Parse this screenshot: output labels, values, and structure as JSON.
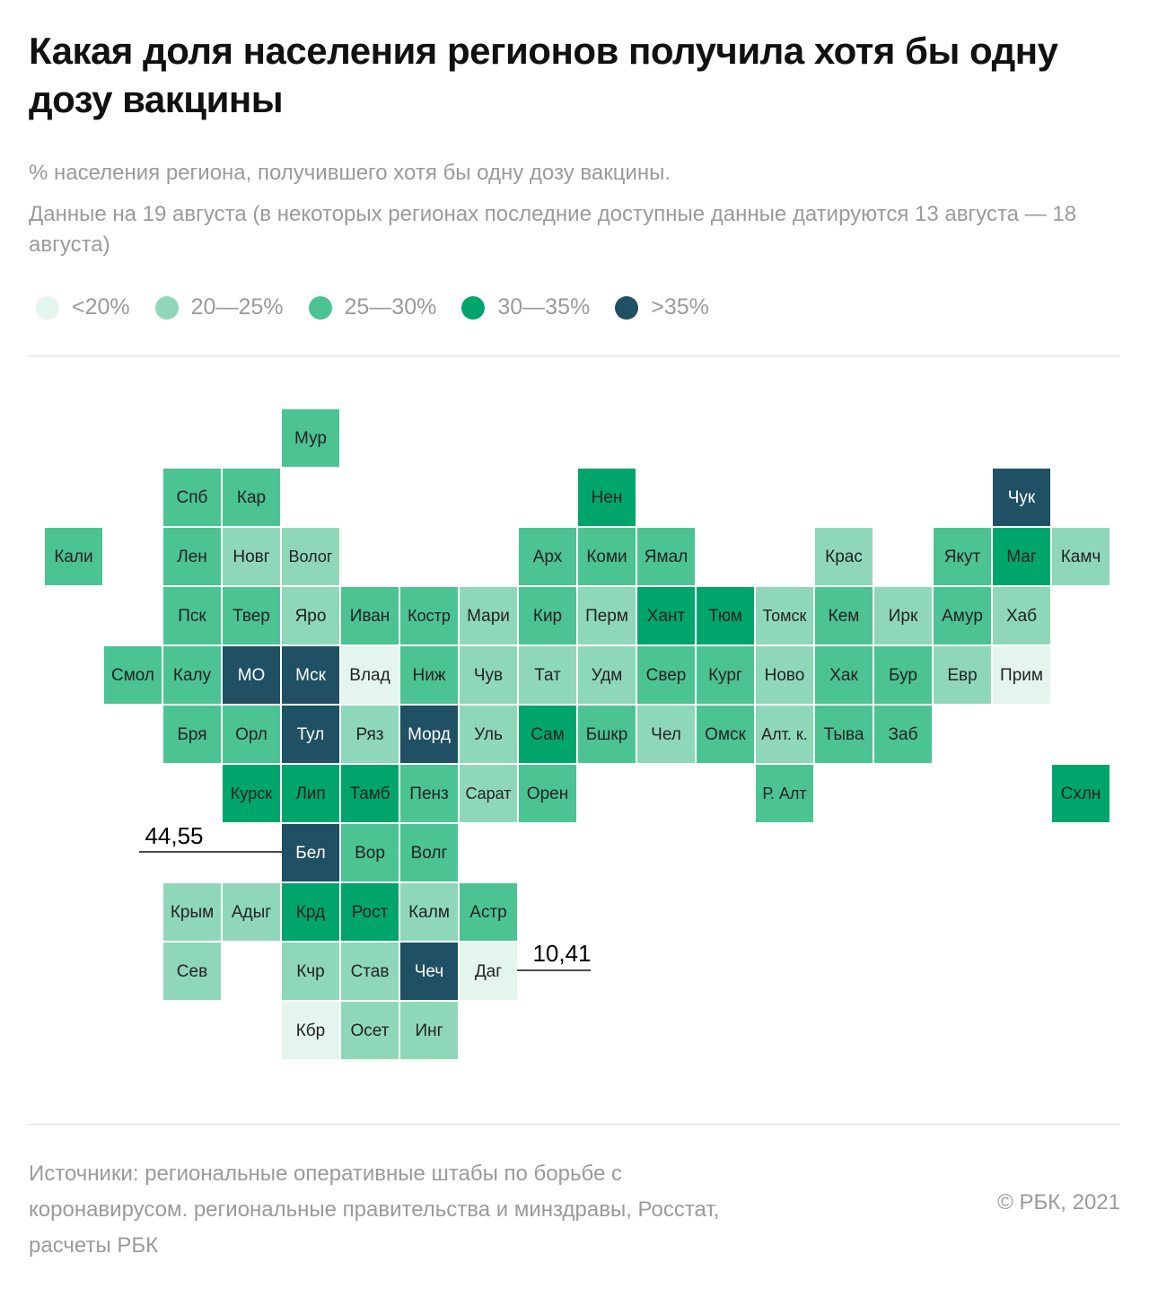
{
  "header": {
    "title": "Какая доля населения регионов получила хотя бы одну дозу вакцины",
    "subtitle": "% населения региона, получившего хотя бы одну дозу вакцины.",
    "note": "Данные на 19 августа (в некоторых регионах последние доступные данные датируются 13 августа — 18 августа)"
  },
  "legend": [
    {
      "label": "<20%",
      "color": "#e3f5ec"
    },
    {
      "label": "20—25%",
      "color": "#8ed8b9"
    },
    {
      "label": "25—30%",
      "color": "#4bc393"
    },
    {
      "label": "30—35%",
      "color": "#00a56c"
    },
    {
      "label": ">35%",
      "color": "#1f5063"
    }
  ],
  "tiles": [
    {
      "label": "Мур",
      "color": "#4bc393"
    },
    {
      "label": "Спб",
      "color": "#4bc393"
    },
    {
      "label": "Кар",
      "color": "#4bc393"
    },
    {
      "label": "Нен",
      "color": "#00a56c"
    },
    {
      "label": "Чук",
      "color": "#1f5063"
    },
    {
      "label": "Кали",
      "color": "#4bc393"
    },
    {
      "label": "Лен",
      "color": "#4bc393"
    },
    {
      "label": "Новг",
      "color": "#8ed8b9"
    },
    {
      "label": "Волог",
      "color": "#8ed8b9"
    },
    {
      "label": "Арх",
      "color": "#4bc393"
    },
    {
      "label": "Коми",
      "color": "#4bc393"
    },
    {
      "label": "Ямал",
      "color": "#4bc393"
    },
    {
      "label": "Крас",
      "color": "#8ed8b9"
    },
    {
      "label": "Якут",
      "color": "#4bc393"
    },
    {
      "label": "Маг",
      "color": "#00a56c"
    },
    {
      "label": "Камч",
      "color": "#8ed8b9"
    },
    {
      "label": "Пск",
      "color": "#4bc393"
    },
    {
      "label": "Твер",
      "color": "#4bc393"
    },
    {
      "label": "Яро",
      "color": "#8ed8b9"
    },
    {
      "label": "Иван",
      "color": "#4bc393"
    },
    {
      "label": "Костр",
      "color": "#4bc393"
    },
    {
      "label": "Мари",
      "color": "#8ed8b9"
    },
    {
      "label": "Кир",
      "color": "#4bc393"
    },
    {
      "label": "Перм",
      "color": "#8ed8b9"
    },
    {
      "label": "Хант",
      "color": "#00a56c"
    },
    {
      "label": "Тюм",
      "color": "#00a56c"
    },
    {
      "label": "Томск",
      "color": "#8ed8b9"
    },
    {
      "label": "Кем",
      "color": "#4bc393"
    },
    {
      "label": "Ирк",
      "color": "#8ed8b9"
    },
    {
      "label": "Амур",
      "color": "#4bc393"
    },
    {
      "label": "Хаб",
      "color": "#8ed8b9"
    },
    {
      "label": "Смол",
      "color": "#4bc393"
    },
    {
      "label": "Калу",
      "color": "#4bc393"
    },
    {
      "label": "МО",
      "color": "#1f5063"
    },
    {
      "label": "Мск",
      "color": "#1f5063"
    },
    {
      "label": "Влад",
      "color": "#e3f5ec"
    },
    {
      "label": "Ниж",
      "color": "#4bc393"
    },
    {
      "label": "Чув",
      "color": "#8ed8b9"
    },
    {
      "label": "Тат",
      "color": "#8ed8b9"
    },
    {
      "label": "Удм",
      "color": "#8ed8b9"
    },
    {
      "label": "Свер",
      "color": "#4bc393"
    },
    {
      "label": "Кург",
      "color": "#4bc393"
    },
    {
      "label": "Ново",
      "color": "#8ed8b9"
    },
    {
      "label": "Хак",
      "color": "#4bc393"
    },
    {
      "label": "Бур",
      "color": "#4bc393"
    },
    {
      "label": "Евр",
      "color": "#8ed8b9"
    },
    {
      "label": "Прим",
      "color": "#e3f5ec"
    },
    {
      "label": "Бря",
      "color": "#4bc393"
    },
    {
      "label": "Орл",
      "color": "#4bc393"
    },
    {
      "label": "Тул",
      "color": "#1f5063"
    },
    {
      "label": "Ряз",
      "color": "#8ed8b9"
    },
    {
      "label": "Морд",
      "color": "#1f5063"
    },
    {
      "label": "Уль",
      "color": "#8ed8b9"
    },
    {
      "label": "Сам",
      "color": "#00a56c"
    },
    {
      "label": "Бшкр",
      "color": "#4bc393"
    },
    {
      "label": "Чел",
      "color": "#8ed8b9"
    },
    {
      "label": "Омск",
      "color": "#4bc393"
    },
    {
      "label": "Алт. к.",
      "color": "#8ed8b9"
    },
    {
      "label": "Тыва",
      "color": "#4bc393"
    },
    {
      "label": "Заб",
      "color": "#4bc393"
    },
    {
      "label": "Курск",
      "color": "#00a56c"
    },
    {
      "label": "Лип",
      "color": "#00a56c"
    },
    {
      "label": "Тамб",
      "color": "#00a56c"
    },
    {
      "label": "Пенз",
      "color": "#4bc393"
    },
    {
      "label": "Сарат",
      "color": "#8ed8b9"
    },
    {
      "label": "Орен",
      "color": "#4bc393"
    },
    {
      "label": "Р. Алт",
      "color": "#4bc393"
    },
    {
      "label": "Схлн",
      "color": "#00a56c"
    },
    {
      "label": "Бел",
      "color": "#1f5063"
    },
    {
      "label": "Вор",
      "color": "#4bc393"
    },
    {
      "label": "Волг",
      "color": "#4bc393"
    },
    {
      "label": "Крым",
      "color": "#8ed8b9"
    },
    {
      "label": "Адыг",
      "color": "#8ed8b9"
    },
    {
      "label": "Крд",
      "color": "#00a56c"
    },
    {
      "label": "Рост",
      "color": "#00a56c"
    },
    {
      "label": "Калм",
      "color": "#8ed8b9"
    },
    {
      "label": "Астр",
      "color": "#4bc393"
    },
    {
      "label": "Сев",
      "color": "#8ed8b9"
    },
    {
      "label": "Кчр",
      "color": "#8ed8b9"
    },
    {
      "label": "Став",
      "color": "#8ed8b9"
    },
    {
      "label": "Чеч",
      "color": "#1f5063"
    },
    {
      "label": "Даг",
      "color": "#e3f5ec"
    },
    {
      "label": "Кбр",
      "color": "#e3f5ec"
    },
    {
      "label": "Осет",
      "color": "#8ed8b9"
    },
    {
      "label": "Инг",
      "color": "#8ed8b9"
    }
  ],
  "annotations": [
    {
      "text": "44,55"
    },
    {
      "text": "10,41"
    }
  ],
  "footer": {
    "source": "Источники: региональные оперативные штабы по борьбе с коронавирусом. региональные правительства и минздравы, Росстат, расчеты РБК",
    "copyright": "© РБК, 2021"
  }
}
